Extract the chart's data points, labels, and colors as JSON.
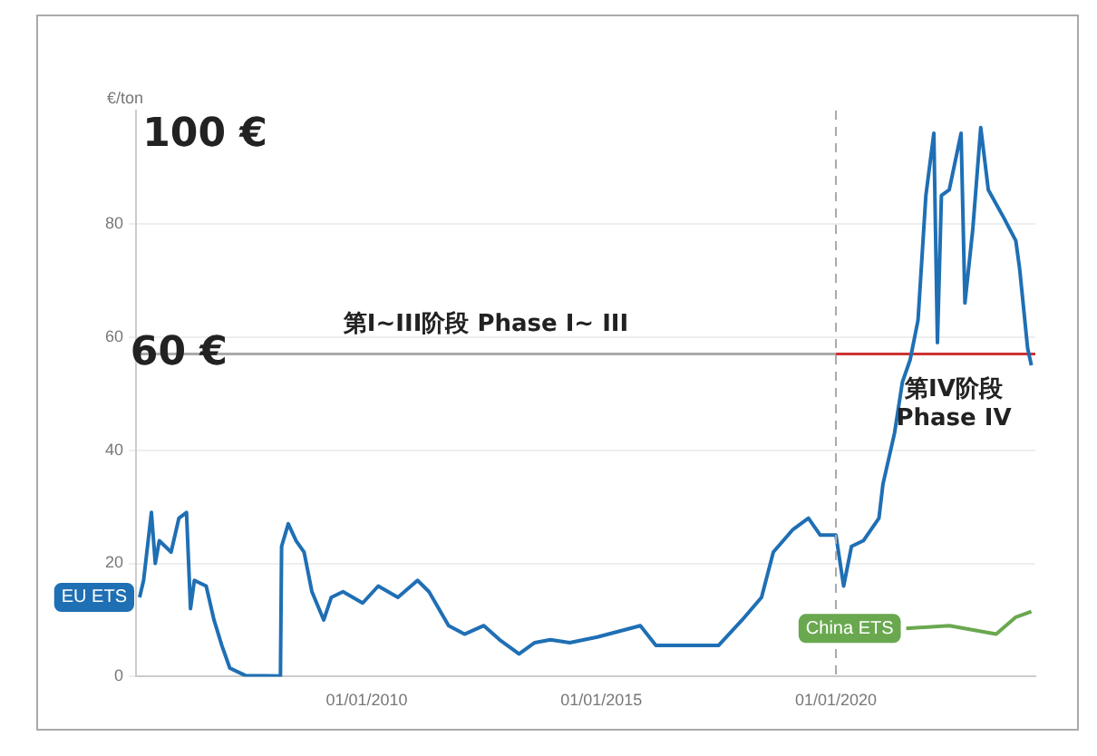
{
  "chart_data": {
    "type": "line",
    "ylabel": "€/ton",
    "xlim": [
      "2005-02",
      "2024-04"
    ],
    "ylim": [
      0,
      100
    ],
    "xticks": [
      {
        "value": "2010-01-01",
        "label": "01/01/2010"
      },
      {
        "value": "2015-01-01",
        "label": "01/01/2015"
      },
      {
        "value": "2020-01-01",
        "label": "01/01/2020"
      }
    ],
    "yticks": [
      0,
      20,
      40,
      60,
      80
    ],
    "grid": "y",
    "legend": false,
    "marker": "none",
    "line_style": "solid",
    "series": [
      {
        "name": "EU ETS",
        "color": "#1f6fb4",
        "x": [
          "2005-03",
          "2005-04",
          "2005-06",
          "2005-07",
          "2005-08",
          "2005-11",
          "2006-01",
          "2006-03",
          "2006-04",
          "2006-05",
          "2006-08",
          "2006-10",
          "2006-12",
          "2007-02",
          "2007-06",
          "2008-03-01",
          "2008-03-10",
          "2008-05",
          "2008-07",
          "2008-09",
          "2008-11",
          "2009-02",
          "2009-04",
          "2009-07",
          "2009-12",
          "2010-04",
          "2010-09",
          "2011-02",
          "2011-05",
          "2011-10",
          "2012-02",
          "2012-07",
          "2012-11",
          "2013-04",
          "2013-08",
          "2013-12",
          "2014-05",
          "2014-12",
          "2015-11",
          "2016-03",
          "2016-10",
          "2017-07",
          "2018-01",
          "2018-06",
          "2018-09",
          "2019-02",
          "2019-06",
          "2019-09",
          "2020-01",
          "2020-03",
          "2020-05",
          "2020-08",
          "2020-12",
          "2021-01",
          "2021-04",
          "2021-06",
          "2021-08",
          "2021-10",
          "2021-12",
          "2022-02",
          "2022-03",
          "2022-04",
          "2022-06",
          "2022-09",
          "2022-10",
          "2022-12",
          "2023-02",
          "2023-04",
          "2023-08",
          "2023-11",
          "2023-12",
          "2024-02",
          "2024-03"
        ],
        "values": [
          14,
          17,
          29,
          20,
          24,
          22,
          28,
          29,
          12,
          17,
          16,
          10,
          5.5,
          1.5,
          0.2,
          0.1,
          23,
          27,
          24,
          22,
          15,
          10,
          14,
          15,
          13,
          16,
          14,
          17,
          15,
          9,
          7.5,
          9,
          6.5,
          4,
          6,
          6.5,
          6,
          7,
          9,
          5.5,
          5.5,
          5.5,
          10,
          14,
          22,
          26,
          28,
          25,
          25,
          16,
          23,
          24,
          28,
          34,
          43,
          52,
          56,
          63,
          85,
          96,
          59,
          85,
          86,
          96,
          66,
          79,
          97,
          86,
          81,
          77,
          72,
          58,
          55
        ]
      },
      {
        "name": "China ETS",
        "color": "#6aa84f",
        "x": [
          "2021-07",
          "2022-06",
          "2023-06",
          "2023-11",
          "2024-03"
        ],
        "values": [
          8.5,
          9,
          7.5,
          10.5,
          11.5
        ]
      },
      {
        "color": "#aaaaaa",
        "x": [
          "2005-02",
          "2020-01-01"
        ],
        "values": [
          57,
          57
        ]
      },
      {
        "color": "#cc3333",
        "x": [
          "2020-01-01",
          "2024-04"
        ],
        "values": [
          57,
          57
        ]
      }
    ],
    "ref_lines": [
      {
        "axis": "x",
        "value": "2020-01-01",
        "color": "#aaaaaa",
        "line_style": "dashed"
      }
    ],
    "annotations": [
      "100 €",
      {
        "text": "60 €",
        "x": "2006-01",
        "y": 57
      },
      "第I~III阶段 Phase I~ III",
      "第IV阶段",
      "Phase IV"
    ]
  }
}
